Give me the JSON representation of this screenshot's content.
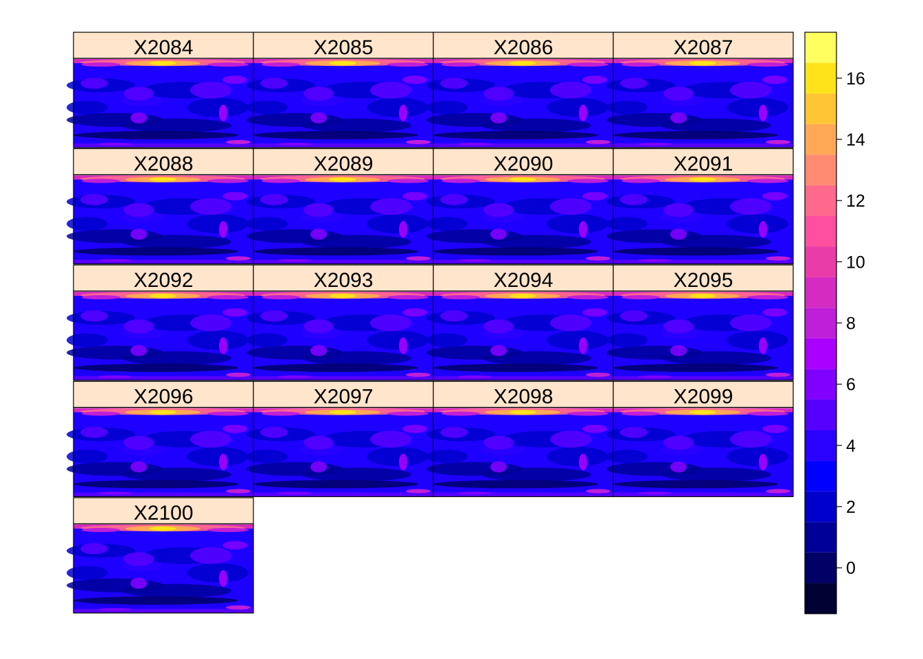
{
  "chart_data": {
    "type": "heatmap",
    "layout": {
      "columns": 4,
      "rows": 5
    },
    "panels": [
      "X2084",
      "X2085",
      "X2086",
      "X2087",
      "X2088",
      "X2089",
      "X2090",
      "X2091",
      "X2092",
      "X2093",
      "X2094",
      "X2095",
      "X2096",
      "X2097",
      "X2098",
      "X2099",
      "X2100"
    ],
    "colorbar": {
      "range": [
        -1.5,
        17.5
      ],
      "ticks": [
        "0",
        "2",
        "4",
        "6",
        "8",
        "10",
        "12",
        "14",
        "16"
      ],
      "breaks": [
        -1.5,
        -0.5,
        0.5,
        1.5,
        2.5,
        3.5,
        4.5,
        5.5,
        6.5,
        7.5,
        8.5,
        9.5,
        10.5,
        11.5,
        12.5,
        13.5,
        14.5,
        15.5,
        16.5,
        17.5
      ],
      "colors": [
        "#000033",
        "#000066",
        "#000099",
        "#0000CC",
        "#0000FF",
        "#2A00FF",
        "#5500FF",
        "#8000FF",
        "#AA00FF",
        "#BF1FD8",
        "#D52BC0",
        "#EA3CA8",
        "#FF4FA0",
        "#FF6A8C",
        "#FF8B72",
        "#FFA855",
        "#FFC532",
        "#FFE31A",
        "#FFFF60"
      ]
    },
    "strip_color": "#FFE5CC"
  }
}
